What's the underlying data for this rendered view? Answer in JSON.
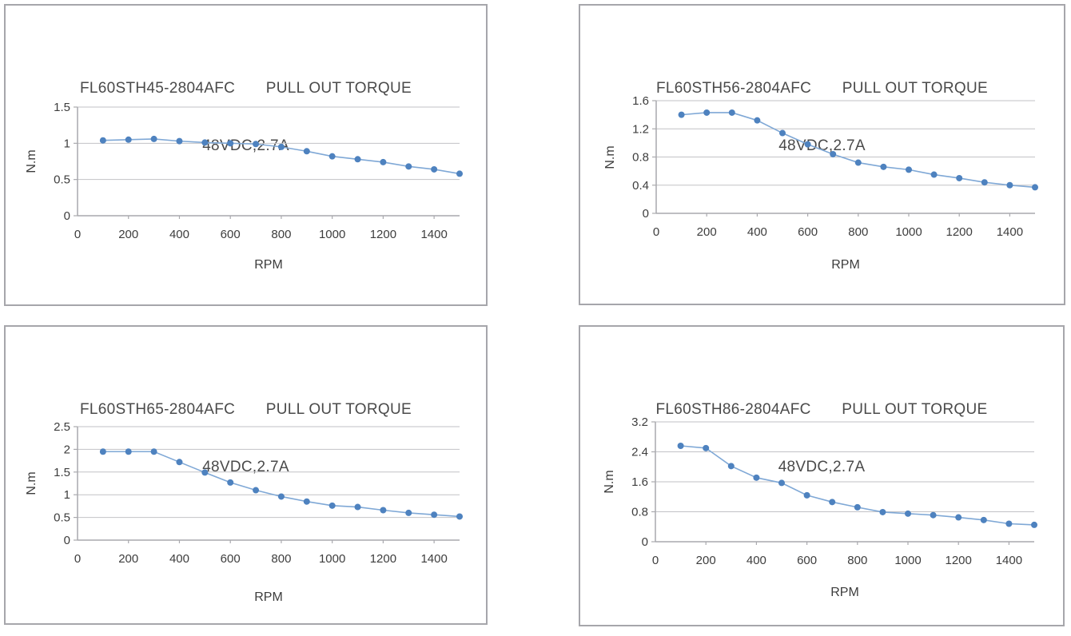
{
  "colors": {
    "line": "#7fa8d6",
    "marker": "#4e82bf",
    "grid": "#c2c2c6",
    "axis": "#a9a9ae",
    "tick_text": "#3d3d3d",
    "title_text": "#4a4a4a",
    "panel_border": "#a6a6ab",
    "background": "#ffffff"
  },
  "chart_data": [
    {
      "type": "line",
      "title_line1": "FL60STH45-2804AFC  PULL OUT TORQUE",
      "title_line2": "48VDC,2.7A",
      "xlabel": "RPM",
      "ylabel": "N.m",
      "legend": false,
      "grid": true,
      "x": [
        100,
        200,
        300,
        400,
        500,
        600,
        700,
        800,
        900,
        1000,
        1100,
        1200,
        1300,
        1400,
        1500
      ],
      "values": [
        1.04,
        1.05,
        1.06,
        1.03,
        1.01,
        1.0,
        0.99,
        0.95,
        0.89,
        0.82,
        0.78,
        0.74,
        0.68,
        0.64,
        0.58
      ],
      "xlim": [
        0,
        1500
      ],
      "ylim": [
        0,
        1.5
      ],
      "ytick_values": [
        0,
        0.5,
        1,
        1.5
      ],
      "ytick_labels": [
        "0",
        "0.5",
        "1",
        "1.5"
      ],
      "xtick_values": [
        0,
        200,
        400,
        600,
        800,
        1000,
        1200,
        1400
      ],
      "xtick_labels": [
        "0",
        "200",
        "400",
        "600",
        "800",
        "1000",
        "1200",
        "1400"
      ]
    },
    {
      "type": "line",
      "title_line1": "FL60STH56-2804AFC  PULL OUT TORQUE",
      "title_line2": "48VDC,2.7A",
      "xlabel": "RPM",
      "ylabel": "N.m",
      "legend": false,
      "grid": true,
      "x": [
        100,
        200,
        300,
        400,
        500,
        600,
        700,
        800,
        900,
        1000,
        1100,
        1200,
        1300,
        1400,
        1500
      ],
      "values": [
        1.4,
        1.43,
        1.43,
        1.32,
        1.14,
        0.98,
        0.84,
        0.72,
        0.66,
        0.62,
        0.55,
        0.5,
        0.44,
        0.4,
        0.37
      ],
      "xlim": [
        0,
        1500
      ],
      "ylim": [
        0,
        1.6
      ],
      "ytick_values": [
        0,
        0.4,
        0.8,
        1.2,
        1.6
      ],
      "ytick_labels": [
        "0",
        "0.4",
        "0.8",
        "1.2",
        "1.6"
      ],
      "xtick_values": [
        0,
        200,
        400,
        600,
        800,
        1000,
        1200,
        1400
      ],
      "xtick_labels": [
        "0",
        "200",
        "400",
        "600",
        "800",
        "1000",
        "1200",
        "1400"
      ]
    },
    {
      "type": "line",
      "title_line1": "FL60STH65-2804AFC  PULL OUT TORQUE",
      "title_line2": "48VDC,2.7A",
      "xlabel": "RPM",
      "ylabel": "N.m",
      "legend": false,
      "grid": true,
      "x": [
        100,
        200,
        300,
        400,
        500,
        600,
        700,
        800,
        900,
        1000,
        1100,
        1200,
        1300,
        1400,
        1500
      ],
      "values": [
        1.95,
        1.95,
        1.95,
        1.72,
        1.49,
        1.27,
        1.1,
        0.96,
        0.85,
        0.76,
        0.73,
        0.66,
        0.6,
        0.56,
        0.52
      ],
      "xlim": [
        0,
        1500
      ],
      "ylim": [
        0,
        2.5
      ],
      "ytick_values": [
        0,
        0.5,
        1,
        1.5,
        2,
        2.5
      ],
      "ytick_labels": [
        "0",
        "0.5",
        "1",
        "1.5",
        "2",
        "2.5"
      ],
      "xtick_values": [
        0,
        200,
        400,
        600,
        800,
        1000,
        1200,
        1400
      ],
      "xtick_labels": [
        "0",
        "200",
        "400",
        "600",
        "800",
        "1000",
        "1200",
        "1400"
      ]
    },
    {
      "type": "line",
      "title_line1": "FL60STH86-2804AFC  PULL OUT TORQUE",
      "title_line2": "48VDC,2.7A",
      "xlabel": "RPM",
      "ylabel": "N.m",
      "legend": false,
      "grid": true,
      "x": [
        100,
        200,
        300,
        400,
        500,
        600,
        700,
        800,
        900,
        1000,
        1100,
        1200,
        1300,
        1400,
        1500
      ],
      "values": [
        2.56,
        2.5,
        2.02,
        1.71,
        1.57,
        1.24,
        1.06,
        0.92,
        0.79,
        0.75,
        0.71,
        0.65,
        0.58,
        0.48,
        0.45
      ],
      "xlim": [
        0,
        1500
      ],
      "ylim": [
        0,
        3.2
      ],
      "ytick_values": [
        0,
        0.8,
        1.6,
        2.4,
        3.2
      ],
      "ytick_labels": [
        "0",
        "0.8",
        "1.6",
        "2.4",
        "3.2"
      ],
      "xtick_values": [
        0,
        200,
        400,
        600,
        800,
        1000,
        1200,
        1400
      ],
      "xtick_labels": [
        "0",
        "200",
        "400",
        "600",
        "800",
        "1000",
        "1200",
        "1400"
      ]
    }
  ]
}
